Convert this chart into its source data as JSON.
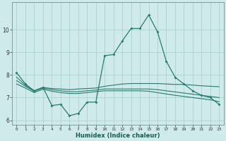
{
  "xlabel": "Humidex (Indice chaleur)",
  "x": [
    0,
    1,
    2,
    3,
    4,
    5,
    6,
    7,
    8,
    9,
    10,
    11,
    12,
    13,
    14,
    15,
    16,
    17,
    18,
    19,
    20,
    21,
    22,
    23
  ],
  "line1": [
    8.1,
    7.6,
    7.3,
    7.45,
    6.65,
    6.7,
    6.2,
    6.3,
    6.8,
    6.8,
    8.85,
    8.9,
    9.5,
    10.05,
    10.05,
    10.65,
    9.9,
    8.6,
    7.9,
    7.6,
    7.3,
    7.1,
    7.0,
    6.7
  ],
  "line2": [
    7.9,
    7.55,
    7.3,
    7.45,
    7.4,
    7.38,
    7.35,
    7.38,
    7.4,
    7.42,
    7.5,
    7.55,
    7.6,
    7.62,
    7.62,
    7.62,
    7.62,
    7.6,
    7.58,
    7.58,
    7.55,
    7.52,
    7.5,
    7.48
  ],
  "line3": [
    7.75,
    7.5,
    7.28,
    7.42,
    7.35,
    7.3,
    7.26,
    7.26,
    7.3,
    7.33,
    7.38,
    7.38,
    7.38,
    7.38,
    7.38,
    7.38,
    7.35,
    7.3,
    7.25,
    7.2,
    7.15,
    7.1,
    7.05,
    7.0
  ],
  "line4": [
    7.6,
    7.42,
    7.22,
    7.37,
    7.28,
    7.22,
    7.18,
    7.18,
    7.22,
    7.26,
    7.3,
    7.3,
    7.3,
    7.3,
    7.3,
    7.28,
    7.22,
    7.16,
    7.1,
    7.05,
    7.0,
    6.95,
    6.9,
    6.82
  ],
  "line_color": "#2a7a6f",
  "bg_color": "#ceeaea",
  "grid_color": "#aacccc",
  "ylim": [
    5.8,
    11.2
  ],
  "yticks": [
    6,
    7,
    8,
    9,
    10
  ],
  "xlim": [
    -0.5,
    23.5
  ]
}
